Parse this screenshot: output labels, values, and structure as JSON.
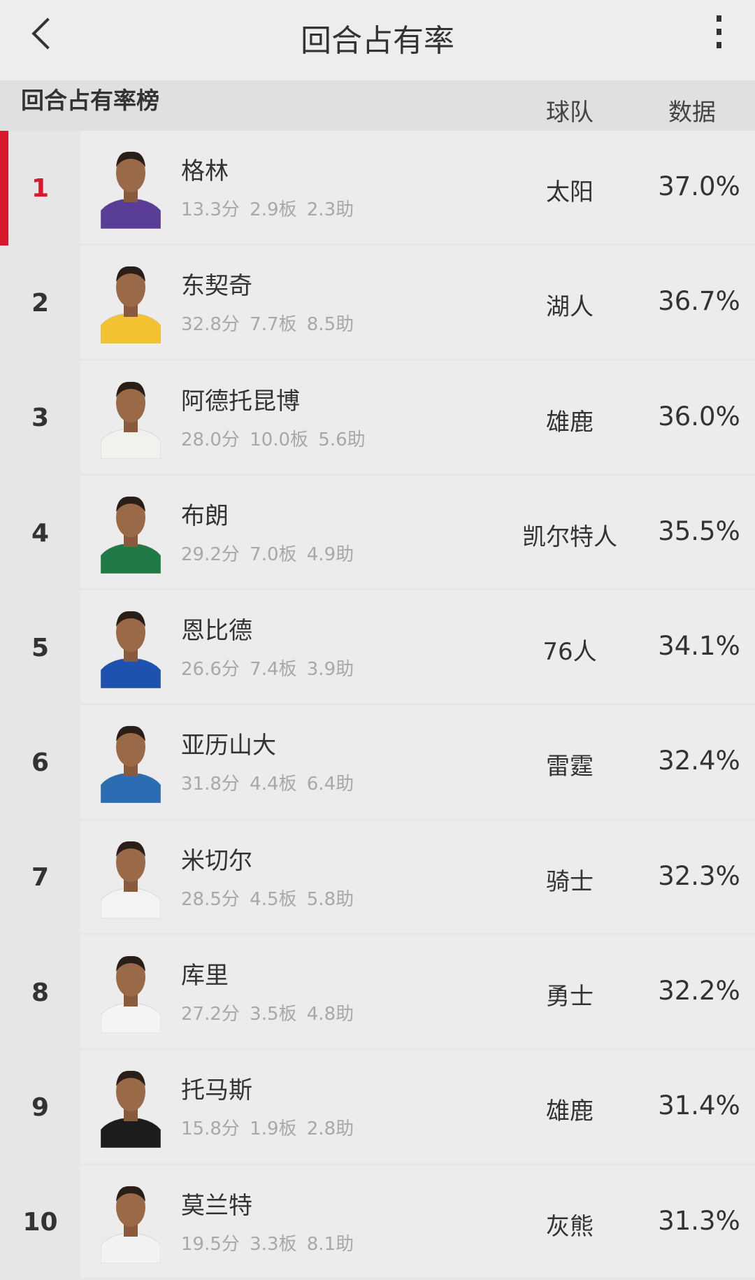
{
  "header": {
    "title": "回合占有率",
    "back_icon": "chevron-left-icon",
    "more_icon": "more-vertical-icon"
  },
  "table": {
    "title": "回合占有率榜",
    "col_team": "球队",
    "col_value": "数据",
    "accent": "#d9182b"
  },
  "rows": [
    {
      "rank": "1",
      "name": "格林",
      "stats": "13.3分 2.9板 2.3助",
      "team": "太阳",
      "value": "37.0%",
      "jersey": "#5a3d96"
    },
    {
      "rank": "2",
      "name": "东契奇",
      "stats": "32.8分 7.7板 8.5助",
      "team": "湖人",
      "value": "36.7%",
      "jersey": "#f2c230"
    },
    {
      "rank": "3",
      "name": "阿德托昆博",
      "stats": "28.0分 10.0板 5.6助",
      "team": "雄鹿",
      "value": "36.0%",
      "jersey": "#f1f1ee"
    },
    {
      "rank": "4",
      "name": "布朗",
      "stats": "29.2分 7.0板 4.9助",
      "team": "凯尔特人",
      "value": "35.5%",
      "jersey": "#1f7a46"
    },
    {
      "rank": "5",
      "name": "恩比德",
      "stats": "26.6分 7.4板 3.9助",
      "team": "76人",
      "value": "34.1%",
      "jersey": "#1d52b0"
    },
    {
      "rank": "6",
      "name": "亚历山大",
      "stats": "31.8分 4.4板 6.4助",
      "team": "雷霆",
      "value": "32.4%",
      "jersey": "#2a6db3"
    },
    {
      "rank": "7",
      "name": "米切尔",
      "stats": "28.5分 4.5板 5.8助",
      "team": "骑士",
      "value": "32.3%",
      "jersey": "#f3f3f3"
    },
    {
      "rank": "8",
      "name": "库里",
      "stats": "27.2分 3.5板 4.8助",
      "team": "勇士",
      "value": "32.2%",
      "jersey": "#f4f4f4"
    },
    {
      "rank": "9",
      "name": "托马斯",
      "stats": "15.8分 1.9板 2.8助",
      "team": "雄鹿",
      "value": "31.4%",
      "jersey": "#1c1c1c"
    },
    {
      "rank": "10",
      "name": "莫兰特",
      "stats": "19.5分 3.3板 8.1助",
      "team": "灰熊",
      "value": "31.3%",
      "jersey": "#f2f2f2"
    }
  ]
}
